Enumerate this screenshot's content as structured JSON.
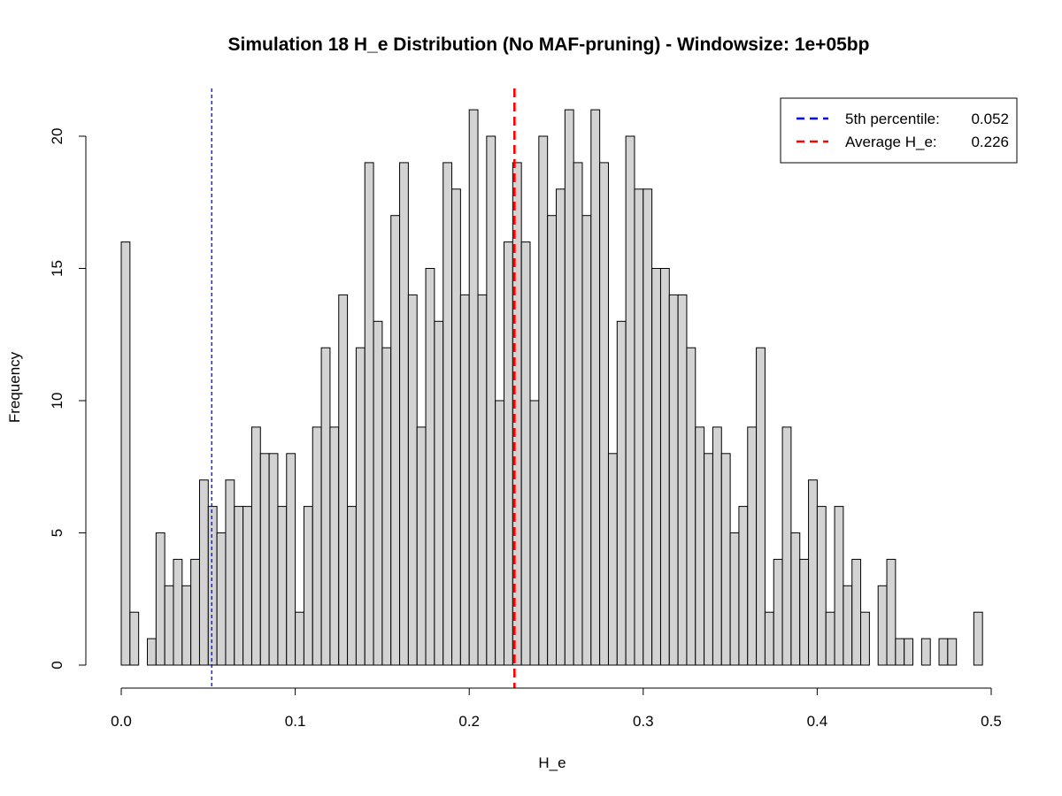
{
  "chart_data": {
    "type": "bar",
    "title": "Simulation 18 H_e Distribution (No MAF-pruning) - Windowsize: 1e+05bp",
    "xlabel": "H_e",
    "ylabel": "Frequency",
    "xlim": [
      0,
      0.5
    ],
    "ylim": [
      0,
      21
    ],
    "bin_width": 0.005,
    "bin_start": 0.0,
    "values": [
      16,
      2,
      0,
      1,
      5,
      3,
      4,
      3,
      4,
      7,
      6,
      5,
      7,
      6,
      6,
      9,
      8,
      8,
      6,
      8,
      2,
      6,
      9,
      12,
      9,
      14,
      6,
      12,
      19,
      13,
      12,
      17,
      19,
      14,
      9,
      15,
      13,
      19,
      18,
      14,
      21,
      14,
      20,
      10,
      16,
      19,
      16,
      10,
      20,
      17,
      18,
      21,
      19,
      17,
      21,
      19,
      8,
      13,
      20,
      18,
      18,
      15,
      15,
      14,
      14,
      12,
      9,
      8,
      9,
      8,
      5,
      6,
      9,
      12,
      2,
      4,
      9,
      5,
      4,
      7,
      6,
      2,
      6,
      3,
      4,
      2,
      0,
      3,
      4,
      1,
      1,
      0,
      1,
      0,
      1,
      1,
      0,
      0,
      2
    ],
    "x_ticks": [
      "0.0",
      "0.1",
      "0.2",
      "0.3",
      "0.4",
      "0.5"
    ],
    "x_tick_values": [
      0,
      0.1,
      0.2,
      0.3,
      0.4,
      0.5
    ],
    "y_ticks": [
      "0",
      "5",
      "10",
      "15",
      "20"
    ],
    "y_tick_values": [
      0,
      5,
      10,
      15,
      20
    ],
    "bar_fill": "#d3d3d3",
    "bar_stroke": "#000000",
    "grid": false,
    "legend_position": "top-right",
    "lines": [
      {
        "name": "5th percentile:",
        "value_label": "0.052",
        "x": 0.052,
        "color": "#0000ff",
        "style": "dashed"
      },
      {
        "name": "Average H_e:",
        "value_label": "0.226",
        "x": 0.226,
        "color": "#ff0000",
        "style": "dashed"
      }
    ]
  }
}
